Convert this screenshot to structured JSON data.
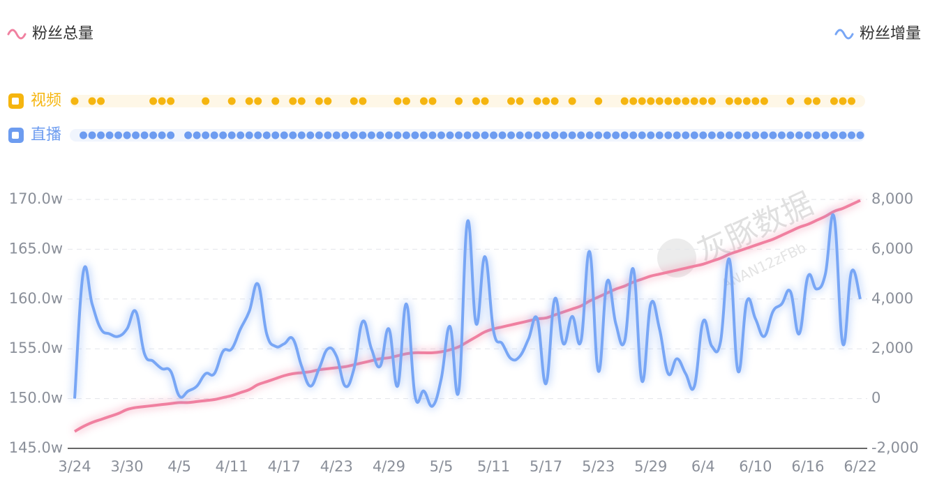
{
  "chart_data": {
    "type": "line",
    "categories": [
      "3/24",
      null,
      null,
      null,
      null,
      null,
      "3/30",
      null,
      null,
      null,
      null,
      null,
      "4/5",
      null,
      null,
      null,
      null,
      null,
      "4/11",
      null,
      null,
      null,
      null,
      null,
      "4/17",
      null,
      null,
      null,
      null,
      null,
      "4/23",
      null,
      null,
      null,
      null,
      null,
      "4/29",
      null,
      null,
      null,
      null,
      null,
      "5/5",
      null,
      null,
      null,
      null,
      null,
      "5/11",
      null,
      null,
      null,
      null,
      null,
      "5/17",
      null,
      null,
      null,
      null,
      null,
      "5/23",
      null,
      null,
      null,
      null,
      null,
      "5/29",
      null,
      null,
      null,
      null,
      null,
      "6/4",
      null,
      null,
      null,
      null,
      null,
      "6/10",
      null,
      null,
      null,
      null,
      null,
      "6/16",
      null,
      null,
      null,
      null,
      null,
      "6/22"
    ],
    "series": [
      {
        "name": "粉丝总量",
        "color": "#f080a0",
        "axis": "y",
        "values": [
          146.7,
          147.2,
          147.6,
          147.9,
          148.2,
          148.5,
          148.9,
          149.1,
          149.2,
          149.3,
          149.4,
          149.5,
          149.6,
          149.6,
          149.7,
          149.8,
          149.9,
          150.1,
          150.3,
          150.6,
          150.9,
          151.4,
          151.7,
          152.0,
          152.3,
          152.5,
          152.6,
          152.7,
          152.9,
          153.0,
          153.1,
          153.2,
          153.4,
          153.6,
          153.8,
          154.0,
          154.1,
          154.3,
          154.5,
          154.6,
          154.6,
          154.6,
          154.7,
          154.9,
          155.2,
          155.7,
          156.2,
          156.7,
          157.0,
          157.2,
          157.4,
          157.6,
          157.8,
          158.0,
          158.1,
          158.4,
          158.7,
          159.0,
          159.3,
          159.8,
          160.2,
          160.6,
          161.0,
          161.3,
          161.7,
          162.0,
          162.3,
          162.5,
          162.7,
          162.9,
          163.1,
          163.3,
          163.5,
          163.8,
          164.1,
          164.5,
          164.8,
          165.1,
          165.4,
          165.7,
          166.0,
          166.4,
          166.8,
          167.2,
          167.5,
          167.9,
          168.3,
          168.8,
          169.1,
          169.5,
          169.9
        ]
      },
      {
        "name": "粉丝增量",
        "color": "#78a6f5",
        "axis": "y2",
        "values": [
          0,
          5100,
          3800,
          2800,
          2600,
          2500,
          2800,
          3500,
          1800,
          1500,
          1200,
          1100,
          100,
          300,
          500,
          1000,
          1000,
          1900,
          2000,
          2800,
          3500,
          4600,
          2600,
          2100,
          2200,
          2400,
          1300,
          500,
          1200,
          2000,
          1700,
          500,
          1200,
          3100,
          2000,
          1300,
          2800,
          500,
          3800,
          100,
          300,
          -300,
          800,
          2900,
          300,
          7100,
          3000,
          5700,
          2700,
          2200,
          1600,
          1700,
          2400,
          3200,
          600,
          4000,
          2200,
          3300,
          2300,
          5900,
          1100,
          4700,
          3000,
          2300,
          5200,
          700,
          3800,
          2800,
          1000,
          1600,
          1000,
          500,
          3100,
          2100,
          2300,
          5600,
          1100,
          3900,
          3200,
          2500,
          3500,
          3800,
          4300,
          2600,
          4900,
          4400,
          5000,
          7300,
          2200,
          5100,
          4000
        ]
      }
    ],
    "ylim": [
      145,
      170
    ],
    "yticks": [
      {
        "value": 145,
        "label": "145.0w"
      },
      {
        "value": 150,
        "label": "150.0w"
      },
      {
        "value": 155,
        "label": "155.0w"
      },
      {
        "value": 160,
        "label": "160.0w"
      },
      {
        "value": 165,
        "label": "165.0w"
      },
      {
        "value": 170,
        "label": "170.0w"
      }
    ],
    "y2lim": [
      -2000,
      8000
    ],
    "y2ticks": [
      {
        "value": -2000,
        "label": "-2,000"
      },
      0,
      {
        "value": 2000,
        "label": "2,000"
      },
      {
        "value": 4000,
        "label": "4,000"
      },
      {
        "value": 6000,
        "label": "6,000"
      },
      {
        "value": 8000,
        "label": "8,000"
      }
    ],
    "grid": true,
    "timeline": [
      {
        "name": "视频",
        "color": "#f5b50f",
        "days": [
          0,
          2,
          3,
          9,
          10,
          11,
          15,
          18,
          20,
          21,
          23,
          25,
          26,
          28,
          29,
          32,
          33,
          37,
          38,
          40,
          41,
          44,
          46,
          47,
          50,
          51,
          53,
          54,
          55,
          57,
          60,
          63,
          64,
          65,
          66,
          67,
          68,
          69,
          70,
          71,
          72,
          73,
          75,
          76,
          77,
          78,
          79,
          82,
          84,
          85,
          87,
          88,
          89
        ]
      },
      {
        "name": "直播",
        "color": "#6d9cf0",
        "days": [
          1,
          2,
          3,
          4,
          5,
          6,
          7,
          8,
          9,
          10,
          11,
          13,
          14,
          15,
          16,
          17,
          18,
          19,
          20,
          21,
          22,
          23,
          24,
          25,
          26,
          27,
          28,
          29,
          30,
          31,
          32,
          33,
          34,
          35,
          36,
          37,
          38,
          39,
          40,
          41,
          42,
          43,
          44,
          45,
          46,
          47,
          48,
          49,
          50,
          51,
          52,
          53,
          54,
          55,
          56,
          57,
          58,
          59,
          60,
          61,
          62,
          63,
          64,
          65,
          66,
          67,
          68,
          69,
          70,
          71,
          72,
          73,
          74,
          75,
          76,
          77,
          78,
          79,
          80,
          81,
          82,
          83,
          84,
          85,
          86,
          87,
          88,
          89,
          90
        ]
      }
    ],
    "watermark": "灰豚数据",
    "watermark_code": "ANAN12zFBb"
  }
}
